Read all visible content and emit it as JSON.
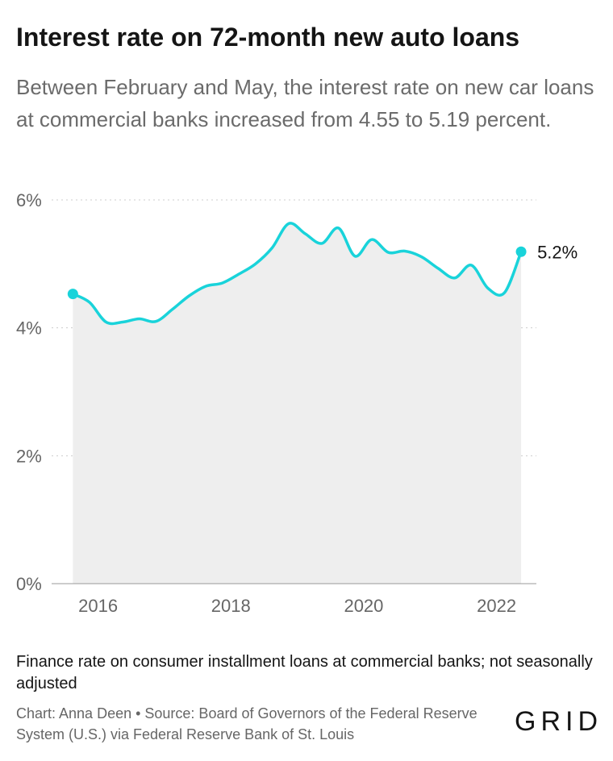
{
  "title": "Interest rate on 72-month new auto loans",
  "subtitle": "Between February and May, the interest rate on new car loans at commercial banks increased from 4.55 to 5.19 percent.",
  "note": "Finance rate on consumer installment loans at commercial banks; not seasonally adjusted",
  "credit": "Chart: Anna Deen • Source: Board of Governors of the Federal Reserve System (U.S.) via Federal Reserve Bank of St. Louis",
  "logo": "GRID",
  "colors": {
    "line": "#19d3da",
    "area": "#eeeeee",
    "grid": "#cccccc",
    "axis_text": "#666666"
  },
  "chart_data": {
    "type": "area",
    "y_ticks": [
      {
        "value": 6,
        "label": "6%"
      },
      {
        "value": 4,
        "label": "4%"
      },
      {
        "value": 2,
        "label": "2%"
      },
      {
        "value": 0,
        "label": "0%"
      }
    ],
    "x_ticks": [
      {
        "value": 2016,
        "label": "2016"
      },
      {
        "value": 2018,
        "label": "2018"
      },
      {
        "value": 2020,
        "label": "2020"
      },
      {
        "value": 2022,
        "label": "2022"
      }
    ],
    "xlim": [
      2015.3,
      2022.6
    ],
    "ylim": [
      0,
      6
    ],
    "grid": true,
    "end_label": "5.2%",
    "series": [
      {
        "x": [
          2015.62,
          2015.87,
          2016.12,
          2016.37,
          2016.62,
          2016.87,
          2017.12,
          2017.37,
          2017.62,
          2017.87,
          2018.12,
          2018.37,
          2018.62,
          2018.87,
          2019.12,
          2019.37,
          2019.62,
          2019.87,
          2020.12,
          2020.37,
          2020.62,
          2020.87,
          2021.12,
          2021.37,
          2021.62,
          2021.87,
          2022.12,
          2022.37
        ],
        "y": [
          4.53,
          4.4,
          4.09,
          4.09,
          4.14,
          4.1,
          4.29,
          4.5,
          4.65,
          4.7,
          4.84,
          5.0,
          5.25,
          5.63,
          5.47,
          5.32,
          5.56,
          5.12,
          5.38,
          5.18,
          5.2,
          5.11,
          4.93,
          4.78,
          4.98,
          4.62,
          4.55,
          5.19
        ]
      }
    ]
  }
}
